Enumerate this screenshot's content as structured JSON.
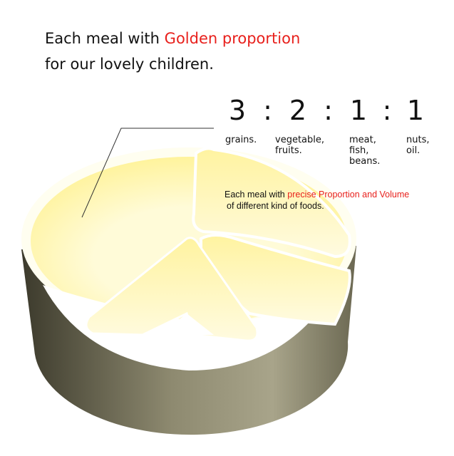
{
  "headline": {
    "line1_start": "Each meal with",
    "line1_highlight": "Golden proportion",
    "line2": "for our lovely children."
  },
  "ratio": {
    "separator": ":",
    "parts": [
      {
        "number": "3",
        "label_lines": [
          "grains."
        ]
      },
      {
        "number": "2",
        "label_lines": [
          "vegetable,",
          "fruits."
        ]
      },
      {
        "number": "1",
        "label_lines": [
          "meat,",
          "fish,",
          "beans."
        ]
      },
      {
        "number": "1",
        "label_lines": [
          "nuts,",
          "oil."
        ]
      }
    ]
  },
  "note": {
    "start": "Each meal with",
    "highlight": "precise Proportion and Volume",
    "line2": "of different kind of foods."
  }
}
